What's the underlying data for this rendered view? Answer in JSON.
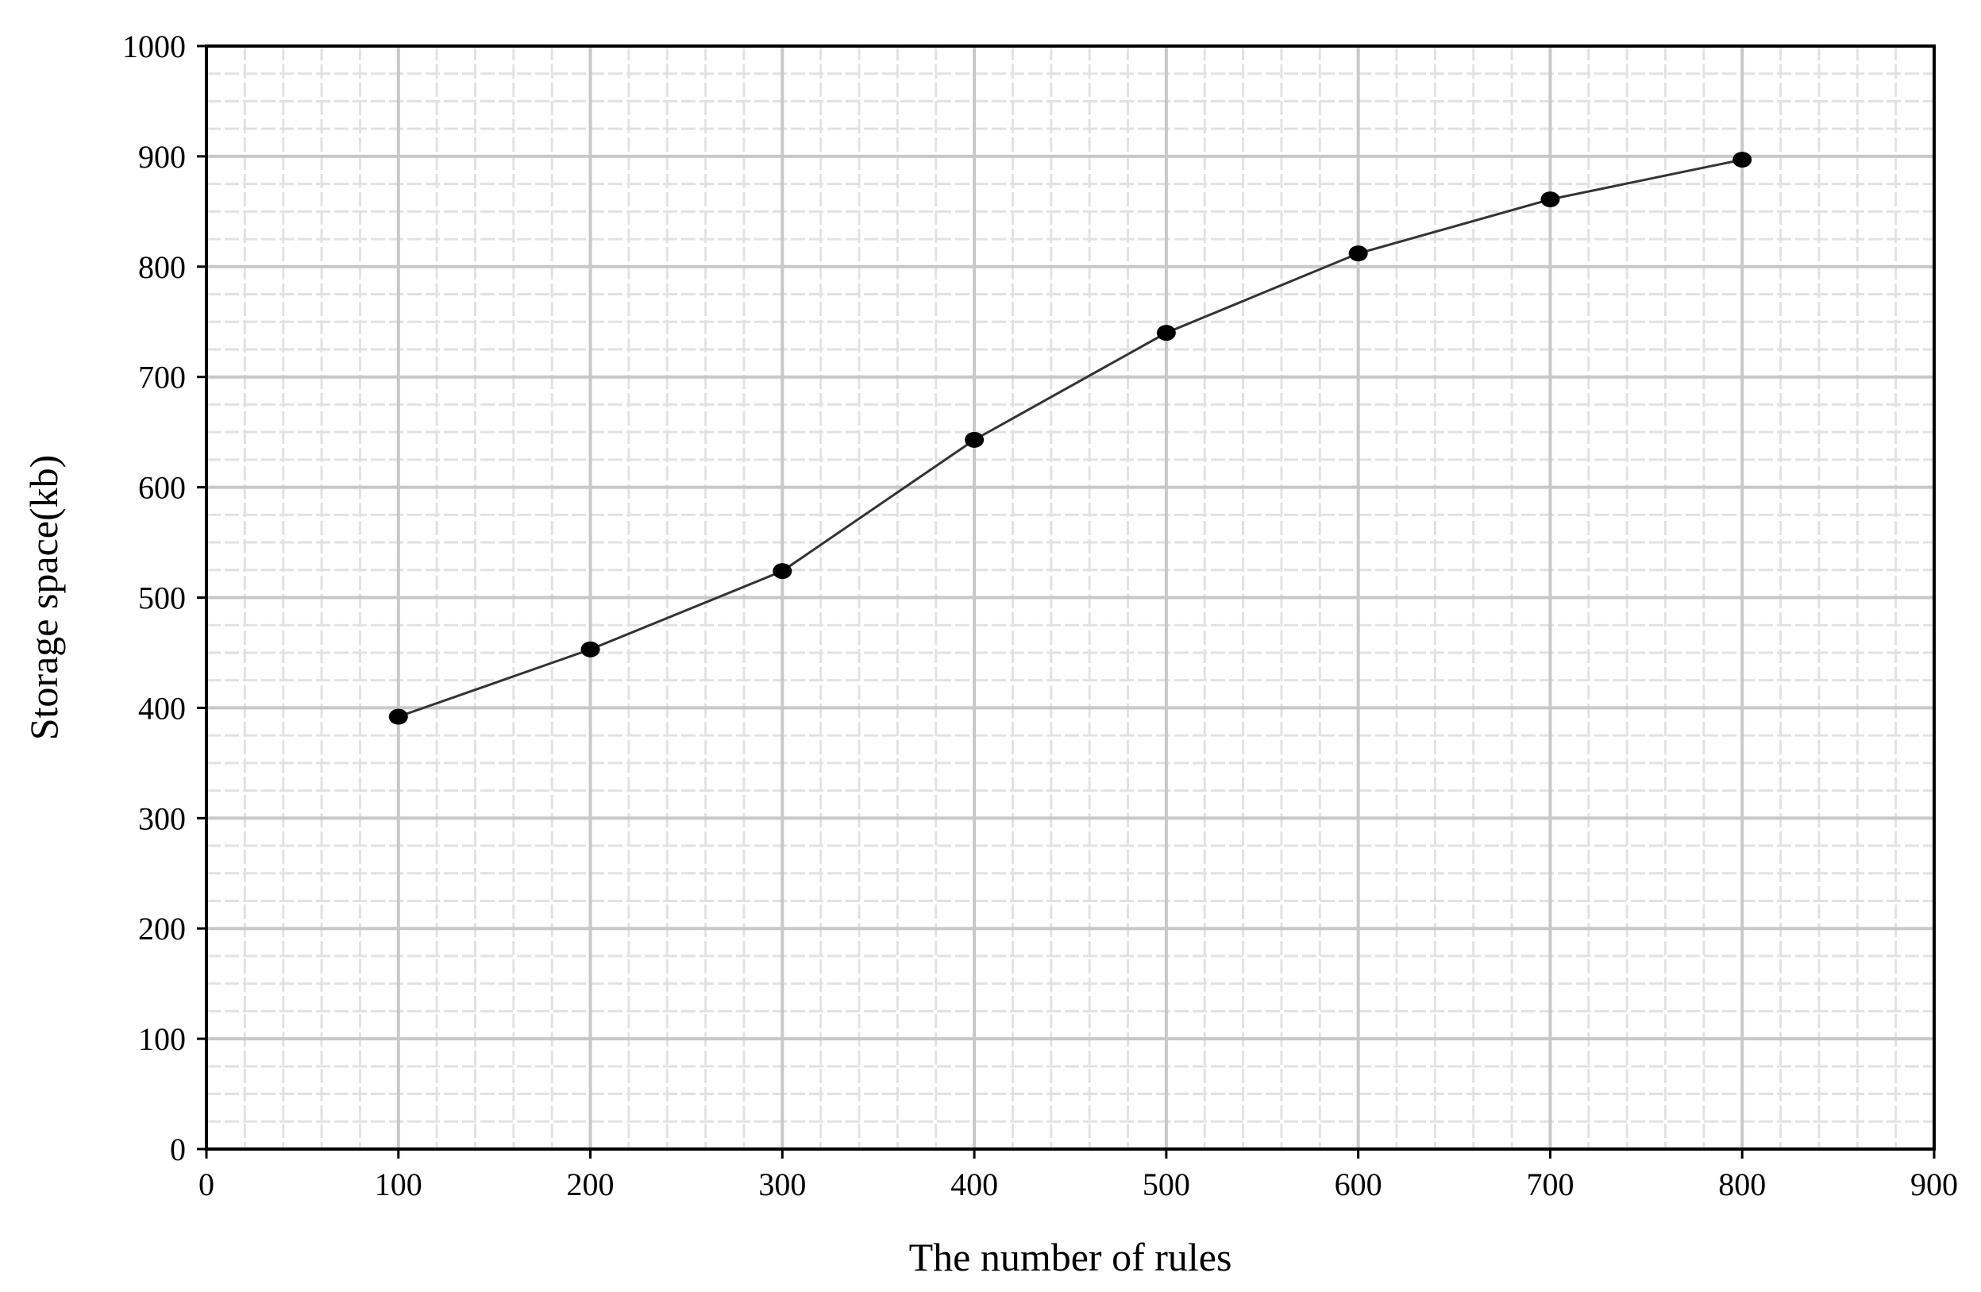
{
  "chart_data": {
    "type": "line",
    "xlabel": "The number of rules",
    "ylabel": "Storage space(kb)",
    "xlim": [
      0,
      900
    ],
    "ylim": [
      0,
      1000
    ],
    "xticks": [
      "0",
      "100",
      "200",
      "300",
      "400",
      "500",
      "600",
      "700",
      "800",
      "900"
    ],
    "yticks": [
      "0",
      "100",
      "200",
      "300",
      "400",
      "500",
      "600",
      "700",
      "800",
      "900",
      "1000"
    ],
    "grid": true,
    "legend": "none",
    "series": [
      {
        "x": [
          100,
          200,
          300,
          400,
          500,
          600,
          700,
          800
        ],
        "y": [
          392,
          453,
          524,
          643,
          740,
          812,
          861,
          897
        ]
      }
    ],
    "colors": {
      "line": "#333333",
      "marker": "#000000",
      "major_grid": "#c8c8c8",
      "minor_grid": "#e2e2e2",
      "axis": "#000000"
    }
  }
}
